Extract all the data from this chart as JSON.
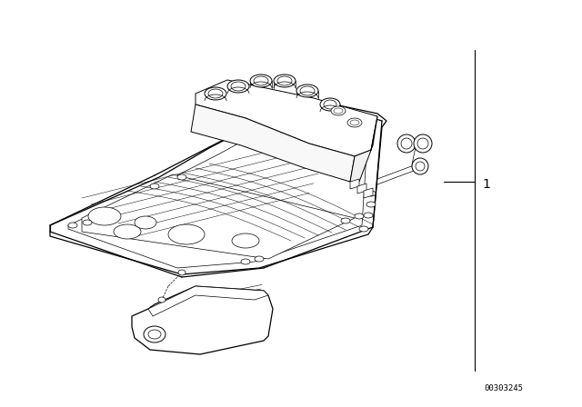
{
  "bg_color": "#ffffff",
  "line_color": "#000000",
  "part_number": "00303245",
  "label_1": "1",
  "fig_width": 6.4,
  "fig_height": 4.48,
  "dpi": 100
}
